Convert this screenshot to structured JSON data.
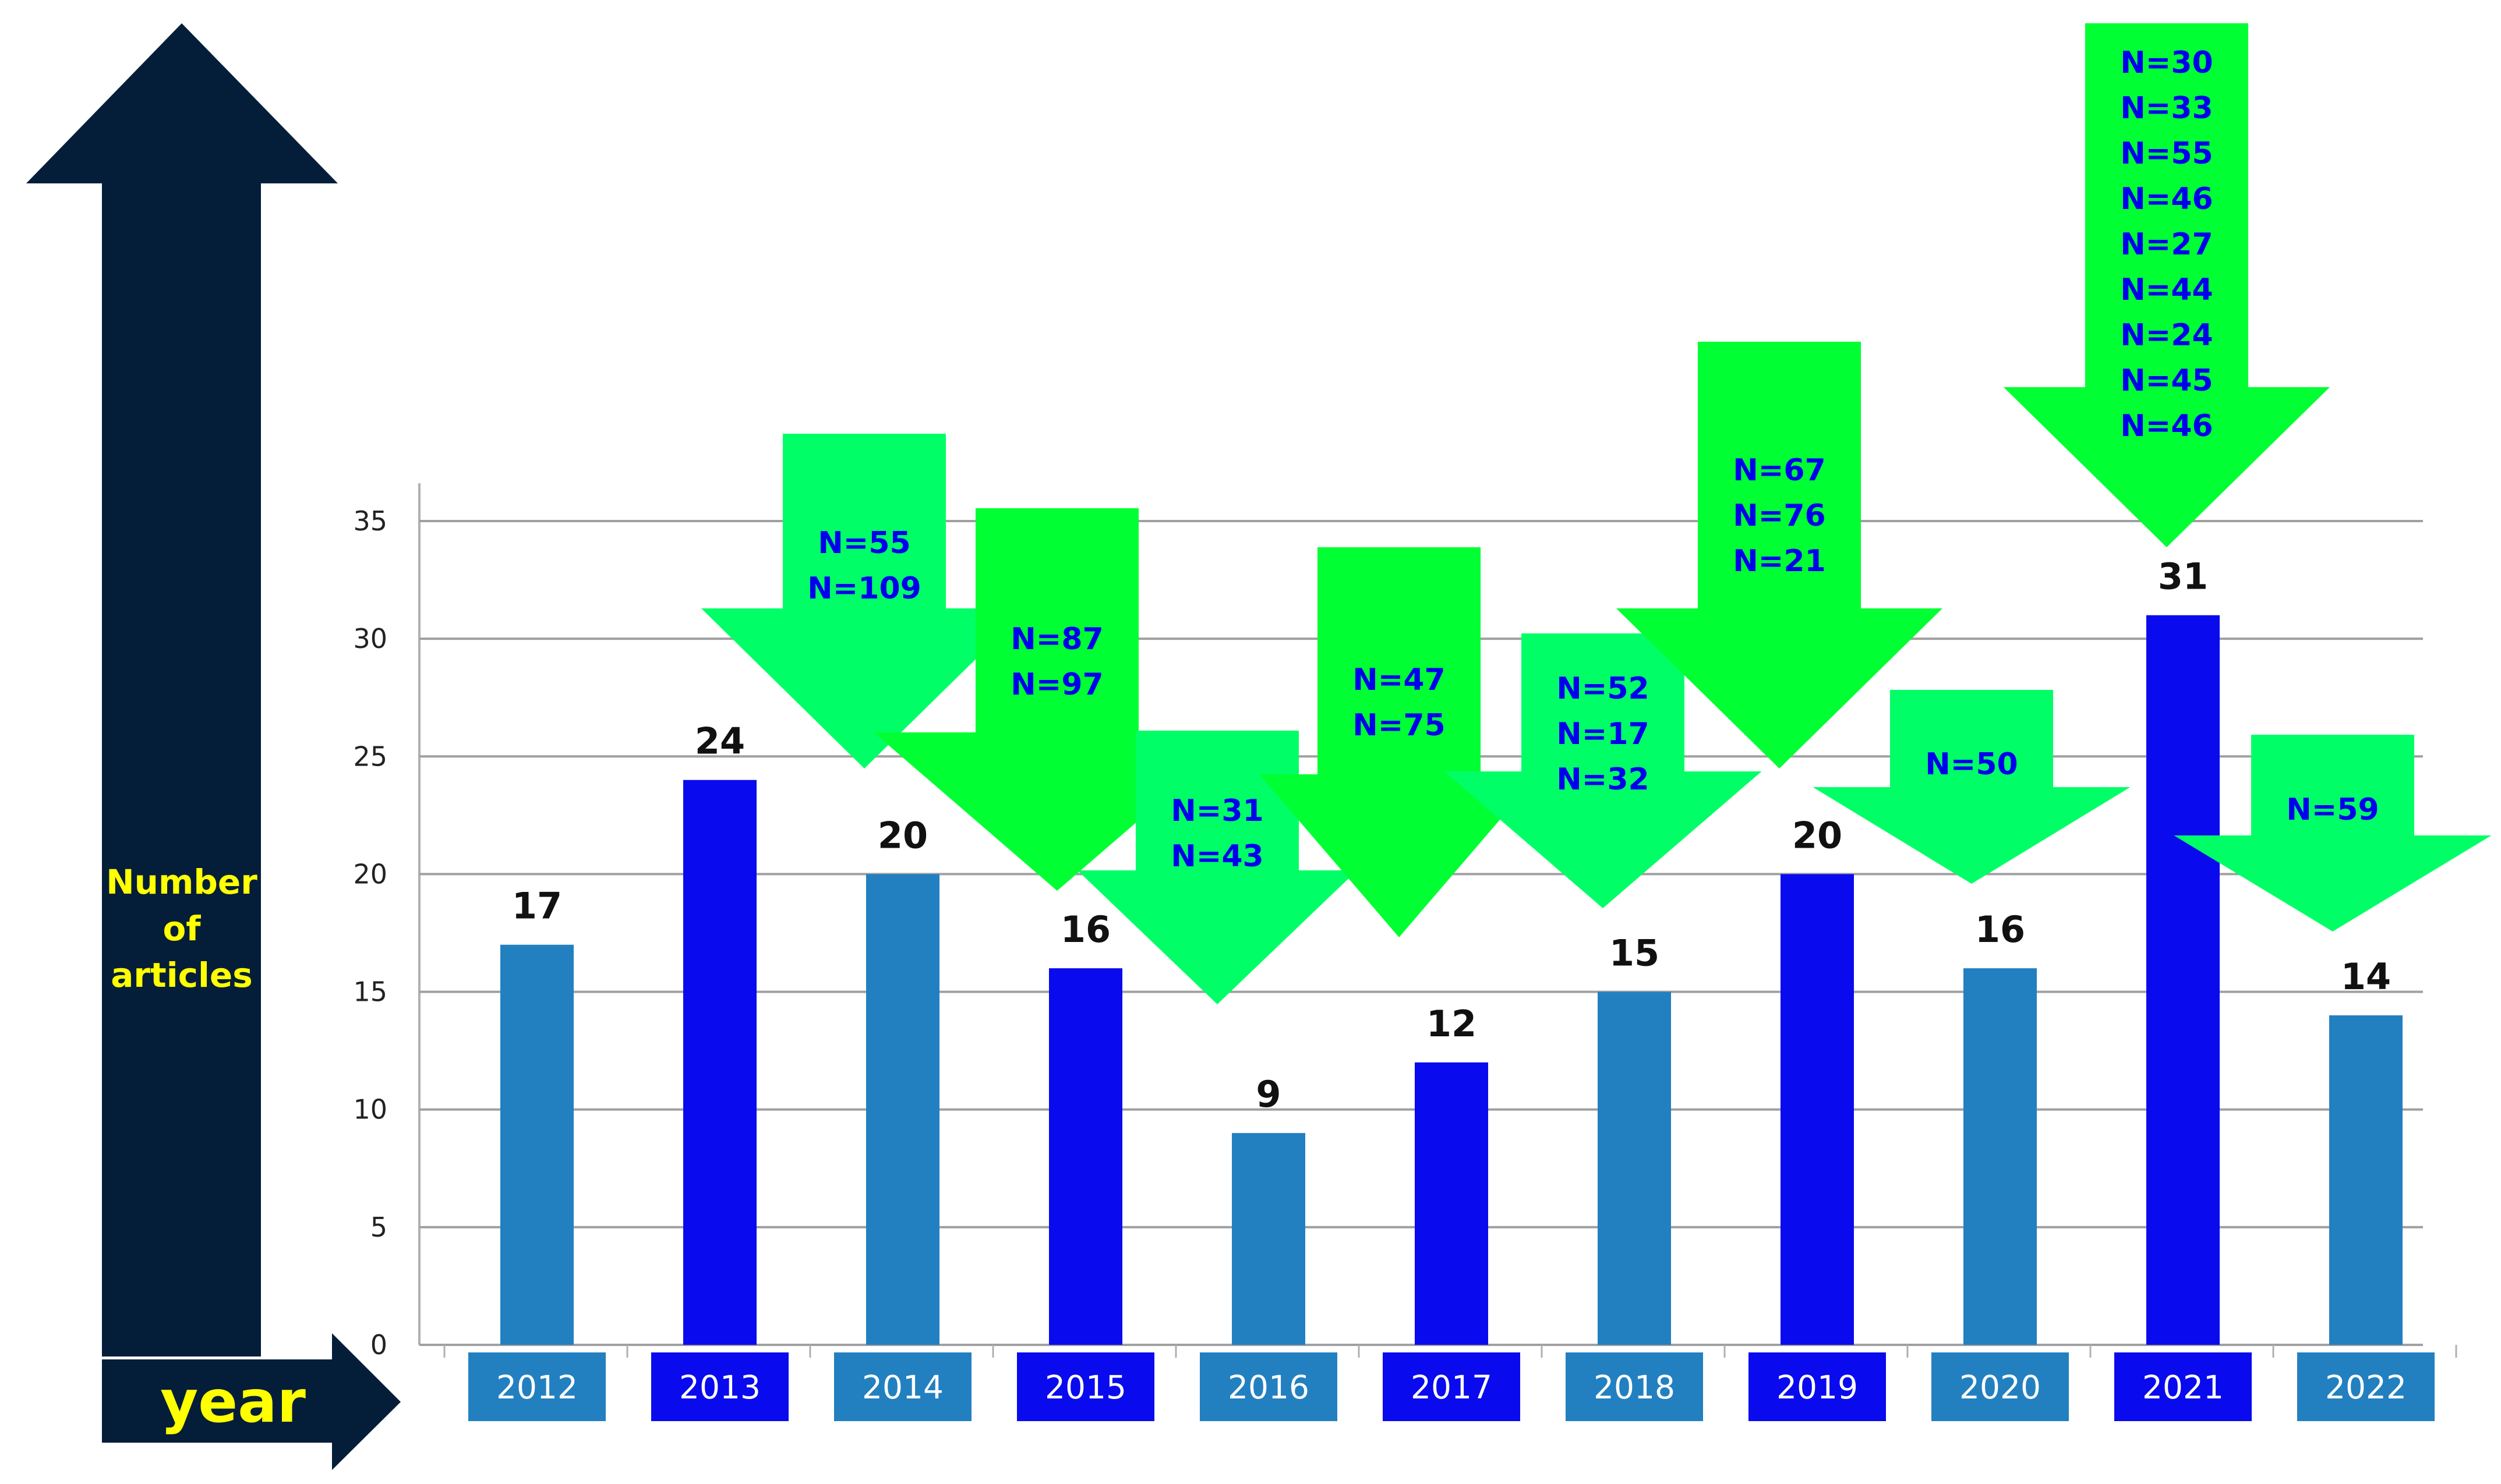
{
  "chart_data": {
    "type": "bar",
    "categories": [
      "2012",
      "2013",
      "2014",
      "2015",
      "2016",
      "2017",
      "2018",
      "2019",
      "2020",
      "2021",
      "2022"
    ],
    "values": [
      17,
      24,
      20,
      16,
      9,
      12,
      15,
      20,
      16,
      31,
      14
    ],
    "ylabel": "Number of articles",
    "ylabel_lines": [
      "Number",
      "of",
      "articles"
    ],
    "xlabel": "year",
    "ylim": [
      0,
      35
    ],
    "yticks": [
      0,
      5,
      10,
      15,
      20,
      25,
      30,
      35
    ],
    "grid": true,
    "bar_colors": [
      "#2280c0",
      "#0a0aee",
      "#2280c0",
      "#0a0aee",
      "#2280c0",
      "#0a0aee",
      "#2280c0",
      "#0a0aee",
      "#2280c0",
      "#0a0aee",
      "#2280c0"
    ],
    "annotations": [
      {
        "year": "2014",
        "labels": [
          "N=55",
          "N=109"
        ],
        "color": "#00ff66"
      },
      {
        "year": "2015",
        "labels": [
          "N=87",
          "N=97"
        ],
        "color": "#00ff33"
      },
      {
        "year": "2016",
        "labels": [
          "N=31",
          "N=43"
        ],
        "color": "#00ff66"
      },
      {
        "year": "2017",
        "labels": [
          "N=47",
          "N=75"
        ],
        "color": "#00ff33"
      },
      {
        "year": "2018",
        "labels": [
          "N=52",
          "N=17",
          "N=32"
        ],
        "color": "#00ff66"
      },
      {
        "year": "2019",
        "labels": [
          "N=67",
          "N=76",
          "N=21"
        ],
        "color": "#00ff33"
      },
      {
        "year": "2020",
        "labels": [
          "N=50"
        ],
        "color": "#00ff66"
      },
      {
        "year": "2021",
        "labels": [
          "N=30",
          "N=33",
          "N=55",
          "N=46",
          "N=27",
          "N=44",
          "N=24",
          "N=45",
          "N=46"
        ],
        "color": "#00ff33"
      },
      {
        "year": "2022",
        "labels": [
          "N=59"
        ],
        "color": "#00ff66"
      }
    ]
  },
  "colors": {
    "dark_arrow": "#041e3a",
    "axis_label_text": "#ffff00",
    "n_text": "#0000ee",
    "grid": "#a0a0a0"
  }
}
